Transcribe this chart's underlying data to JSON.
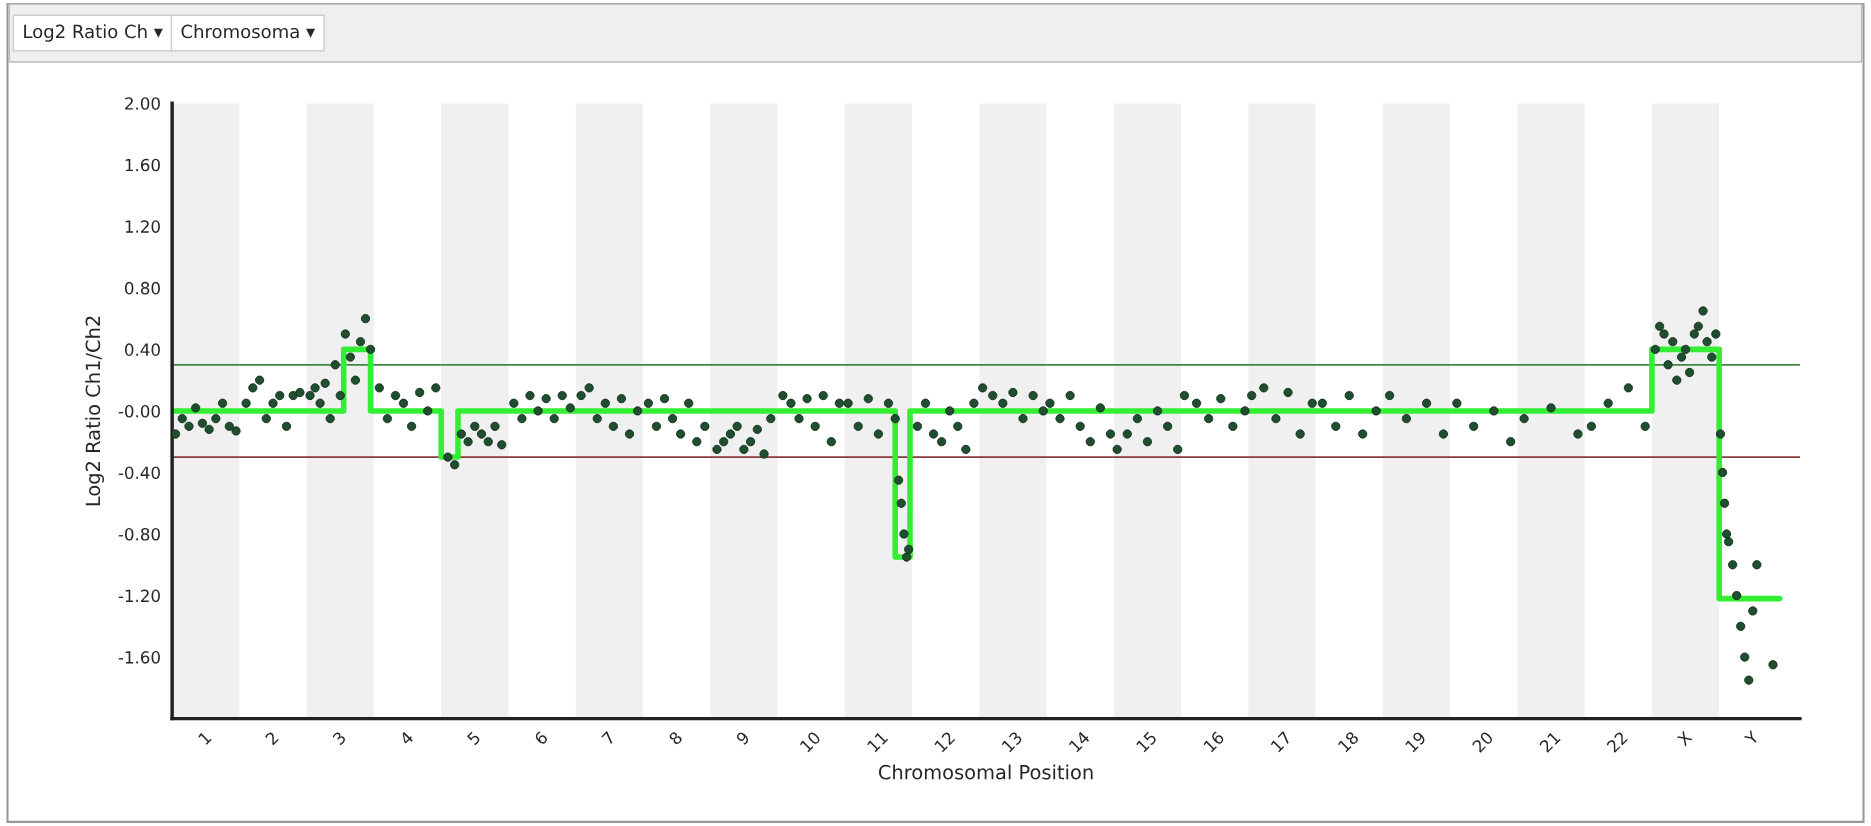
{
  "chart_data": {
    "type": "scatter",
    "xlabel": "Chromosomal Position",
    "ylabel": "Log2 Ratio Ch1/Ch2",
    "annotations": [
      "Log2 Ratio Ch ▾",
      "Chromosoma ▾"
    ],
    "xlim": [
      0.5,
      24.7
    ],
    "ylim": [
      -2.0,
      2.0
    ],
    "xticks": [
      1,
      2,
      3,
      4,
      5,
      6,
      7,
      8,
      9,
      10,
      11,
      12,
      13,
      14,
      15,
      16,
      17,
      18,
      19,
      20,
      21,
      22,
      {
        "value": 23,
        "label": "X"
      },
      {
        "value": 24,
        "label": "Y"
      }
    ],
    "yticks": [
      {
        "value": 2.0,
        "label": "2.00"
      },
      {
        "value": 1.6,
        "label": "1.60"
      },
      {
        "value": 1.2,
        "label": "1.20"
      },
      {
        "value": 0.8,
        "label": "0.80"
      },
      {
        "value": 0.4,
        "label": "0.40"
      },
      {
        "value": 0,
        "label": "-0.00"
      },
      {
        "value": -0.4,
        "label": "-0.40"
      },
      {
        "value": -0.8,
        "label": "-0.80"
      },
      {
        "value": -1.2,
        "label": "-1.20"
      },
      {
        "value": -1.6,
        "label": "-1.60"
      }
    ],
    "marker": "circle",
    "ref_lines": [
      {
        "axis": "y",
        "value": 0.3,
        "color": "#3f8a3f"
      },
      {
        "axis": "y",
        "value": -0.3,
        "color": "#8b3a3a"
      }
    ],
    "bands": [
      {
        "axis": "x",
        "from": 0.5,
        "to": 1.5,
        "color": "#f0f0f0"
      },
      {
        "axis": "x",
        "from": 2.5,
        "to": 3.5,
        "color": "#f0f0f0"
      },
      {
        "axis": "x",
        "from": 4.5,
        "to": 5.5,
        "color": "#f0f0f0"
      },
      {
        "axis": "x",
        "from": 6.5,
        "to": 7.5,
        "color": "#f0f0f0"
      },
      {
        "axis": "x",
        "from": 8.5,
        "to": 9.5,
        "color": "#f0f0f0"
      },
      {
        "axis": "x",
        "from": 10.5,
        "to": 11.5,
        "color": "#f0f0f0"
      },
      {
        "axis": "x",
        "from": 12.5,
        "to": 13.5,
        "color": "#f0f0f0"
      },
      {
        "axis": "x",
        "from": 14.5,
        "to": 15.5,
        "color": "#f0f0f0"
      },
      {
        "axis": "x",
        "from": 16.5,
        "to": 17.5,
        "color": "#f0f0f0"
      },
      {
        "axis": "x",
        "from": 18.5,
        "to": 19.5,
        "color": "#f0f0f0"
      },
      {
        "axis": "x",
        "from": 20.5,
        "to": 21.5,
        "color": "#f0f0f0"
      },
      {
        "axis": "x",
        "from": 22.5,
        "to": 23.5,
        "color": "#f0f0f0"
      }
    ],
    "series": [
      {
        "type": "line",
        "color": "#33ee33",
        "marker": "none",
        "line_style": "solid",
        "x": [
          0.5,
          3.05,
          3.05,
          3.45,
          3.45,
          4.5,
          4.5,
          4.75,
          4.75,
          11.25,
          11.25,
          11.47,
          11.47,
          22.5,
          22.5,
          23.5,
          23.5,
          24.4
        ],
        "values": [
          0,
          0,
          0.4,
          0.4,
          0,
          0,
          -0.3,
          -0.3,
          0,
          0,
          -0.95,
          -0.95,
          0,
          0,
          0.4,
          0.4,
          -1.22,
          -1.22
        ]
      },
      {
        "color": "#1f4f2f",
        "x": [
          0.55,
          0.65,
          0.75,
          0.85,
          0.95,
          1.05,
          1.15,
          1.25,
          1.35,
          1.45,
          1.6,
          1.7,
          1.8,
          1.9,
          2.0,
          2.1,
          2.2,
          2.3,
          2.4,
          2.55,
          2.625,
          2.7,
          2.775,
          2.85,
          2.925,
          3.0,
          3.075,
          3.15,
          3.225,
          3.3,
          3.375,
          3.45,
          3.58,
          3.7,
          3.82,
          3.94,
          4.06,
          4.18,
          4.3,
          4.42,
          4.6,
          4.7,
          4.8,
          4.9,
          5.0,
          5.1,
          5.2,
          5.3,
          5.4,
          5.58,
          5.7,
          5.82,
          5.94,
          6.06,
          6.18,
          6.3,
          6.42,
          6.58,
          6.7,
          6.82,
          6.94,
          7.06,
          7.18,
          7.3,
          7.42,
          7.58,
          7.7,
          7.82,
          7.94,
          8.06,
          8.18,
          8.3,
          8.42,
          8.6,
          8.7,
          8.8,
          8.9,
          9.0,
          9.1,
          9.2,
          9.3,
          9.4,
          9.58,
          9.7,
          9.82,
          9.94,
          10.06,
          10.18,
          10.3,
          10.42,
          10.55,
          10.7,
          10.85,
          11.0,
          11.15,
          11.25,
          11.3,
          11.34,
          11.38,
          11.42,
          11.45,
          11.58,
          11.7,
          11.82,
          11.94,
          12.06,
          12.18,
          12.3,
          12.42,
          12.55,
          12.7,
          12.85,
          13.0,
          13.15,
          13.3,
          13.45,
          13.55,
          13.7,
          13.85,
          14.0,
          14.15,
          14.3,
          14.45,
          14.55,
          14.7,
          14.85,
          15.0,
          15.15,
          15.3,
          15.45,
          15.55,
          15.73,
          15.91,
          16.09,
          16.27,
          16.45,
          16.55,
          16.73,
          16.91,
          17.09,
          17.27,
          17.45,
          17.6,
          17.8,
          18.0,
          18.2,
          18.4,
          18.6,
          18.85,
          19.15,
          19.4,
          19.6,
          19.85,
          20.15,
          20.4,
          20.6,
          21.0,
          21.4,
          21.6,
          21.85,
          22.15,
          22.4,
          22.55,
          22.615,
          22.68,
          22.74,
          22.81,
          22.87,
          22.94,
          23.0,
          23.06,
          23.13,
          23.19,
          23.26,
          23.32,
          23.39,
          23.45,
          23.52,
          23.55,
          23.58,
          23.61,
          23.64,
          23.7,
          23.76,
          23.82,
          23.88,
          23.94,
          24.0,
          24.06,
          24.3
        ],
        "values": [
          -0.15,
          -0.05,
          -0.1,
          0.02,
          -0.08,
          -0.12,
          -0.05,
          0.05,
          -0.1,
          -0.13,
          0.05,
          0.15,
          0.2,
          -0.05,
          0.05,
          0.1,
          -0.1,
          0.1,
          0.12,
          0.1,
          0.15,
          0.05,
          0.18,
          -0.05,
          0.3,
          0.1,
          0.5,
          0.35,
          0.2,
          0.45,
          0.6,
          0.4,
          0.15,
          -0.05,
          0.1,
          0.05,
          -0.1,
          0.12,
          0.0,
          0.15,
          -0.3,
          -0.35,
          -0.15,
          -0.2,
          -0.1,
          -0.15,
          -0.2,
          -0.1,
          -0.22,
          0.05,
          -0.05,
          0.1,
          0.0,
          0.08,
          -0.05,
          0.1,
          0.02,
          0.1,
          0.15,
          -0.05,
          0.05,
          -0.1,
          0.08,
          -0.15,
          0.0,
          0.05,
          -0.1,
          0.08,
          -0.05,
          -0.15,
          0.05,
          -0.2,
          -0.1,
          -0.25,
          -0.2,
          -0.15,
          -0.1,
          -0.25,
          -0.2,
          -0.12,
          -0.28,
          -0.05,
          0.1,
          0.05,
          -0.05,
          0.08,
          -0.1,
          0.1,
          -0.2,
          0.05,
          0.05,
          -0.1,
          0.08,
          -0.15,
          0.05,
          -0.05,
          -0.45,
          -0.6,
          -0.8,
          -0.95,
          -0.9,
          -0.1,
          0.05,
          -0.15,
          -0.2,
          0.0,
          -0.1,
          -0.25,
          0.05,
          0.15,
          0.1,
          0.05,
          0.12,
          -0.05,
          0.1,
          0.0,
          0.05,
          -0.05,
          0.1,
          -0.1,
          -0.2,
          0.02,
          -0.15,
          -0.25,
          -0.15,
          -0.05,
          -0.2,
          0.0,
          -0.1,
          -0.25,
          0.1,
          0.05,
          -0.05,
          0.08,
          -0.1,
          0.0,
          0.1,
          0.15,
          -0.05,
          0.12,
          -0.15,
          0.05,
          0.05,
          -0.1,
          0.1,
          -0.15,
          0.0,
          0.1,
          -0.05,
          0.05,
          -0.15,
          0.05,
          -0.1,
          0.0,
          -0.2,
          -0.05,
          0.02,
          -0.15,
          -0.1,
          0.05,
          0.15,
          -0.1,
          0.4,
          0.55,
          0.5,
          0.3,
          0.45,
          0.2,
          0.35,
          0.4,
          0.25,
          0.5,
          0.55,
          0.65,
          0.45,
          0.35,
          0.5,
          -0.15,
          -0.4,
          -0.6,
          -0.8,
          -0.85,
          -1.0,
          -1.2,
          -1.4,
          -1.6,
          -1.75,
          -1.3,
          -1.0,
          -1.65
        ]
      }
    ]
  }
}
